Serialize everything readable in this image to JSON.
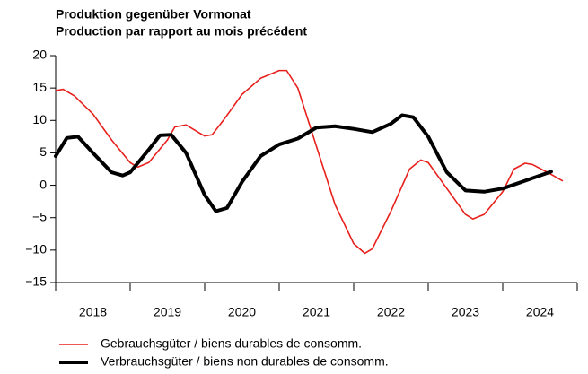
{
  "chart_data": {
    "type": "line",
    "title": "Produktion gegenüber Vormonat",
    "subtitle": "Production par rapport au mois précédent",
    "xlim": [
      2018,
      2025
    ],
    "xticks": [
      2018,
      2019,
      2020,
      2021,
      2022,
      2023,
      2024,
      2025
    ],
    "xlabels": [
      {
        "value": 2018.5,
        "label": "2018"
      },
      {
        "value": 2019.5,
        "label": "2019"
      },
      {
        "value": 2020.5,
        "label": "2020"
      },
      {
        "value": 2021.5,
        "label": "2021"
      },
      {
        "value": 2022.5,
        "label": "2022"
      },
      {
        "value": 2023.5,
        "label": "2023"
      },
      {
        "value": 2024.5,
        "label": "2024"
      }
    ],
    "ylim": [
      -15,
      20
    ],
    "yticks": [
      {
        "value": -15,
        "label": "−15"
      },
      {
        "value": -10,
        "label": "−10"
      },
      {
        "value": -5,
        "label": "−5"
      },
      0,
      5,
      10,
      15,
      20
    ],
    "grid": false,
    "series": [
      {
        "name": "Gebrauchsgüter / biens durables de consomm.",
        "color": "#e8201c",
        "width": 1.6,
        "x": [
          2018.0,
          2018.1,
          2018.25,
          2018.5,
          2018.75,
          2019.0,
          2019.1,
          2019.25,
          2019.5,
          2019.6,
          2019.75,
          2020.0,
          2020.1,
          2020.25,
          2020.5,
          2020.75,
          2021.0,
          2021.1,
          2021.25,
          2021.5,
          2021.75,
          2022.0,
          2022.15,
          2022.25,
          2022.5,
          2022.75,
          2022.9,
          2023.0,
          2023.25,
          2023.5,
          2023.6,
          2023.75,
          2024.0,
          2024.15,
          2024.3,
          2024.4,
          2024.6,
          2024.8
        ],
        "values": [
          14.6,
          14.8,
          13.8,
          11,
          7,
          3.5,
          2.8,
          3.5,
          7,
          9,
          9.3,
          7.6,
          7.8,
          10,
          14,
          16.5,
          17.7,
          17.7,
          15,
          6,
          -3,
          -9,
          -10.5,
          -9.8,
          -4,
          2.5,
          3.9,
          3.5,
          -0.5,
          -4.5,
          -5.2,
          -4.5,
          -1,
          2.5,
          3.4,
          3.2,
          2,
          0.7
        ]
      },
      {
        "name": "Verbrauchsgüter / biens non durables de consomm.",
        "color": "#000000",
        "width": 4,
        "x": [
          2018.0,
          2018.15,
          2018.3,
          2018.5,
          2018.75,
          2018.9,
          2019.0,
          2019.25,
          2019.4,
          2019.55,
          2019.75,
          2020.0,
          2020.15,
          2020.3,
          2020.5,
          2020.75,
          2021.0,
          2021.25,
          2021.5,
          2021.75,
          2022.0,
          2022.25,
          2022.5,
          2022.65,
          2022.8,
          2023.0,
          2023.25,
          2023.5,
          2023.75,
          2024.0,
          2024.25,
          2024.5,
          2024.65
        ],
        "values": [
          4.5,
          7.3,
          7.5,
          5,
          2,
          1.5,
          2,
          5.5,
          7.7,
          7.8,
          5,
          -1.5,
          -4,
          -3.5,
          0.5,
          4.5,
          6.3,
          7.2,
          8.9,
          9.1,
          8.7,
          8.2,
          9.5,
          10.8,
          10.5,
          7.5,
          2,
          -0.8,
          -1,
          -0.5,
          0.5,
          1.5,
          2.1
        ]
      }
    ]
  }
}
